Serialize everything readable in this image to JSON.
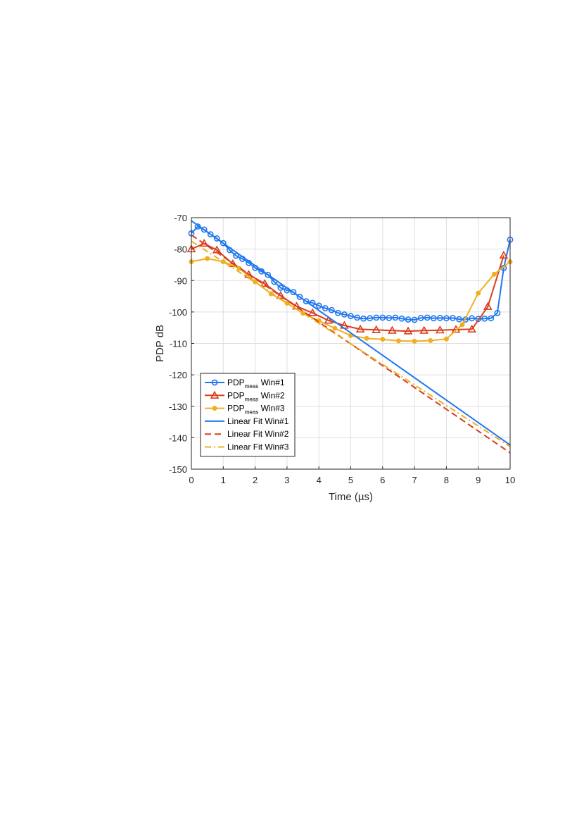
{
  "chart_data": {
    "type": "line",
    "xlabel": "Time (µs)",
    "ylabel": "PDP dB",
    "xlim": [
      0,
      10
    ],
    "ylim": [
      -150,
      -70
    ],
    "xticks": [
      0,
      1,
      2,
      3,
      4,
      5,
      6,
      7,
      8,
      9,
      10
    ],
    "yticks": [
      -150,
      -140,
      -130,
      -120,
      -110,
      -100,
      -90,
      -80,
      -70
    ],
    "grid": true,
    "legend_position": "bottom-left",
    "series": [
      {
        "name": "PDP",
        "name_sub": "meas",
        "name_suffix": " Win#1",
        "color": "#1f77f0",
        "style": "solid",
        "marker": "circle-open",
        "x": [
          0,
          0.2,
          0.4,
          0.6,
          0.8,
          1.0,
          1.2,
          1.4,
          1.6,
          1.8,
          2.0,
          2.2,
          2.4,
          2.6,
          2.8,
          3.0,
          3.2,
          3.4,
          3.6,
          3.8,
          4.0,
          4.2,
          4.4,
          4.6,
          4.8,
          5.0,
          5.2,
          5.4,
          5.6,
          5.8,
          6.0,
          6.2,
          6.4,
          6.6,
          6.8,
          7.0,
          7.2,
          7.4,
          7.6,
          7.8,
          8.0,
          8.2,
          8.4,
          8.6,
          8.8,
          9.0,
          9.2,
          9.4,
          9.6,
          9.8,
          10.0
        ],
        "y": [
          -75,
          -72.8,
          -73.8,
          -75.3,
          -76.6,
          -78.1,
          -80.3,
          -82.1,
          -83.1,
          -84.4,
          -86.0,
          -87.1,
          -88.2,
          -90.4,
          -92.3,
          -93.1,
          -93.7,
          -95.2,
          -96.6,
          -97.1,
          -98.0,
          -98.8,
          -99.4,
          -100.3,
          -100.8,
          -101.3,
          -101.8,
          -102.1,
          -102.0,
          -101.8,
          -101.8,
          -101.9,
          -101.8,
          -102.1,
          -102.4,
          -102.5,
          -101.9,
          -101.8,
          -102.0,
          -101.9,
          -102.0,
          -101.9,
          -102.3,
          -102.4,
          -102.0,
          -102.2,
          -102.1,
          -102.0,
          -100.3,
          -86.0,
          -77.0
        ]
      },
      {
        "name": "PDP",
        "name_sub": "meas",
        "name_suffix": " Win#2",
        "color": "#d93d1c",
        "style": "solid",
        "marker": "triangle-open",
        "x": [
          0,
          0.4,
          0.8,
          1.3,
          1.8,
          2.3,
          2.8,
          3.3,
          3.8,
          4.3,
          4.8,
          5.3,
          5.8,
          6.3,
          6.8,
          7.3,
          7.8,
          8.3,
          8.8,
          9.3,
          9.8
        ],
        "y": [
          -80,
          -78.2,
          -80.3,
          -84.7,
          -88.1,
          -91.0,
          -94.8,
          -98.2,
          -100.3,
          -102.7,
          -104.3,
          -105.5,
          -105.7,
          -105.9,
          -106.1,
          -105.9,
          -105.8,
          -105.6,
          -105.5,
          -98.3,
          -82.0
        ]
      },
      {
        "name": "PDP",
        "name_sub": "meas",
        "name_suffix": " Win#3",
        "color": "#eeb020",
        "style": "solid",
        "marker": "dot-filled",
        "x": [
          0,
          0.5,
          1.0,
          1.5,
          2.0,
          2.5,
          3.0,
          3.5,
          4.0,
          4.5,
          5.0,
          5.5,
          6.0,
          6.5,
          7.0,
          7.5,
          8.0,
          8.5,
          9.0,
          9.5,
          10.0
        ],
        "y": [
          -84,
          -83.0,
          -84.0,
          -86.1,
          -90.4,
          -94.2,
          -97.2,
          -100.4,
          -102.8,
          -105.2,
          -107.5,
          -108.4,
          -108.7,
          -109.2,
          -109.3,
          -109.1,
          -108.6,
          -104.0,
          -94.0,
          -88.0,
          -84.0
        ]
      },
      {
        "name": "Linear Fit Win#1",
        "color": "#1f77f0",
        "style": "solid",
        "x": [
          0,
          10
        ],
        "y": [
          -71.0,
          -142.3
        ]
      },
      {
        "name": "Linear Fit Win#2",
        "color": "#d93d1c",
        "style": "dashed",
        "x": [
          0,
          10
        ],
        "y": [
          -75.5,
          -144.8
        ]
      },
      {
        "name": "Linear Fit Win#3",
        "color": "#eeb020",
        "style": "dashdot",
        "x": [
          0,
          10
        ],
        "y": [
          -77.5,
          -142.8
        ]
      }
    ]
  }
}
